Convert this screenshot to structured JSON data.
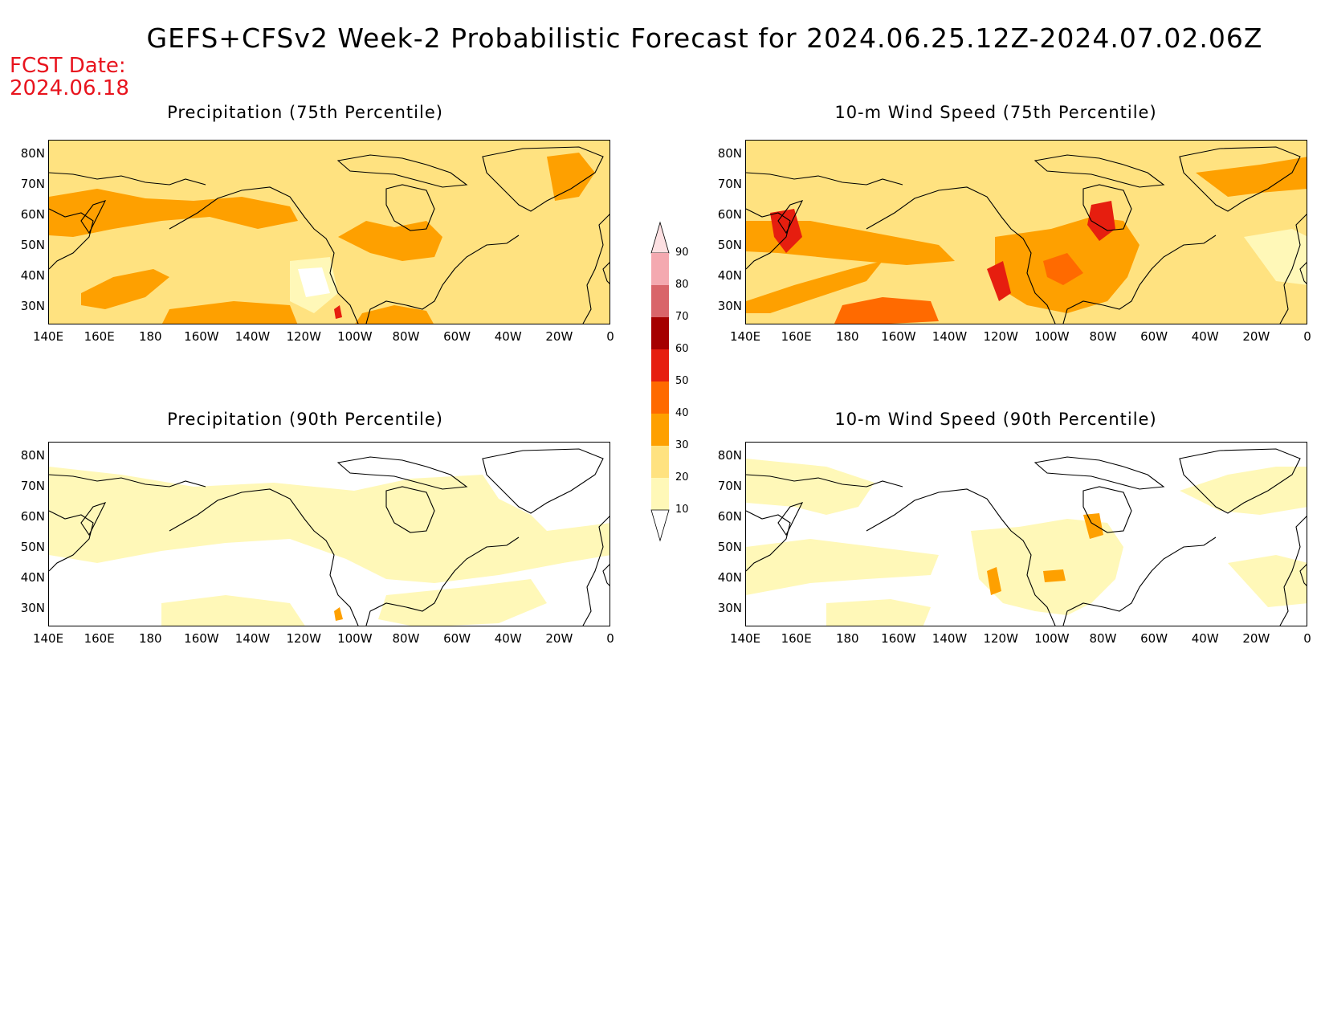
{
  "title": "GEFS+CFSv2 Week-2 Probabilistic Forecast for 2024.06.25.12Z-2024.07.02.06Z",
  "fcst_date_label": "FCST Date:",
  "fcst_date_value": "2024.06.18",
  "panels": [
    {
      "title": "Precipitation (75th Percentile)",
      "level": "medium"
    },
    {
      "title": "10-m Wind Speed (75th Percentile)",
      "level": "high"
    },
    {
      "title": "Precipitation (90th Percentile)",
      "level": "low"
    },
    {
      "title": "10-m Wind Speed (90th Percentile)",
      "level": "low"
    }
  ],
  "lat_labels": [
    "80N",
    "70N",
    "60N",
    "50N",
    "40N",
    "30N"
  ],
  "lon_labels": [
    "140E",
    "160E",
    "180",
    "160W",
    "140W",
    "120W",
    "100W",
    "80W",
    "60W",
    "40W",
    "20W",
    "0"
  ],
  "colorbar": {
    "labels": [
      "90",
      "80",
      "70",
      "60",
      "50",
      "40",
      "30",
      "20",
      "10"
    ],
    "colors": [
      "#fde0e2",
      "#f4a9b0",
      "#d9656a",
      "#a50000",
      "#e61e0f",
      "#ff6a00",
      "#fea000",
      "#ffe280",
      "#fff8b8"
    ]
  },
  "colors": {
    "fcst_text": "#e8141e",
    "light_yellow": "#fff8b8",
    "yellow": "#ffe280",
    "orange_light": "#fea000",
    "orange": "#ff6a00",
    "red": "#e61e0f"
  }
}
